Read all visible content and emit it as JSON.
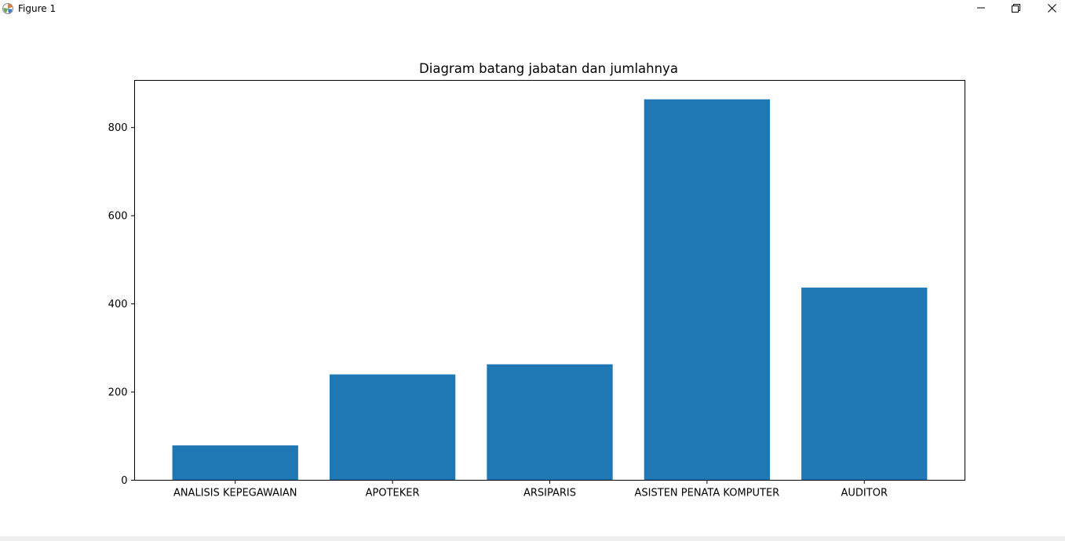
{
  "window": {
    "title": "Figure 1"
  },
  "icons": {
    "app": "matplotlib-figure-icon",
    "minimize": "minimize-icon",
    "maximize": "restore-icon",
    "close": "close-icon"
  },
  "colors": {
    "bar": "#1f77b4",
    "axes": "#000000",
    "background": "#ffffff"
  },
  "chart_data": {
    "type": "bar",
    "title": "Diagram batang jabatan dan jumlahnya",
    "xlabel": "",
    "ylabel": "",
    "categories": [
      "ANALISIS KEPEGAWAIAN",
      "APOTEKER",
      "ARSIPARIS",
      "ASISTEN PENATA KOMPUTER",
      "AUDITOR"
    ],
    "values": [
      79,
      240,
      263,
      864,
      437
    ],
    "ylim": [
      0,
      907
    ],
    "yticks": [
      0,
      200,
      400,
      600,
      800
    ],
    "grid": false,
    "color": "#1f77b4"
  }
}
